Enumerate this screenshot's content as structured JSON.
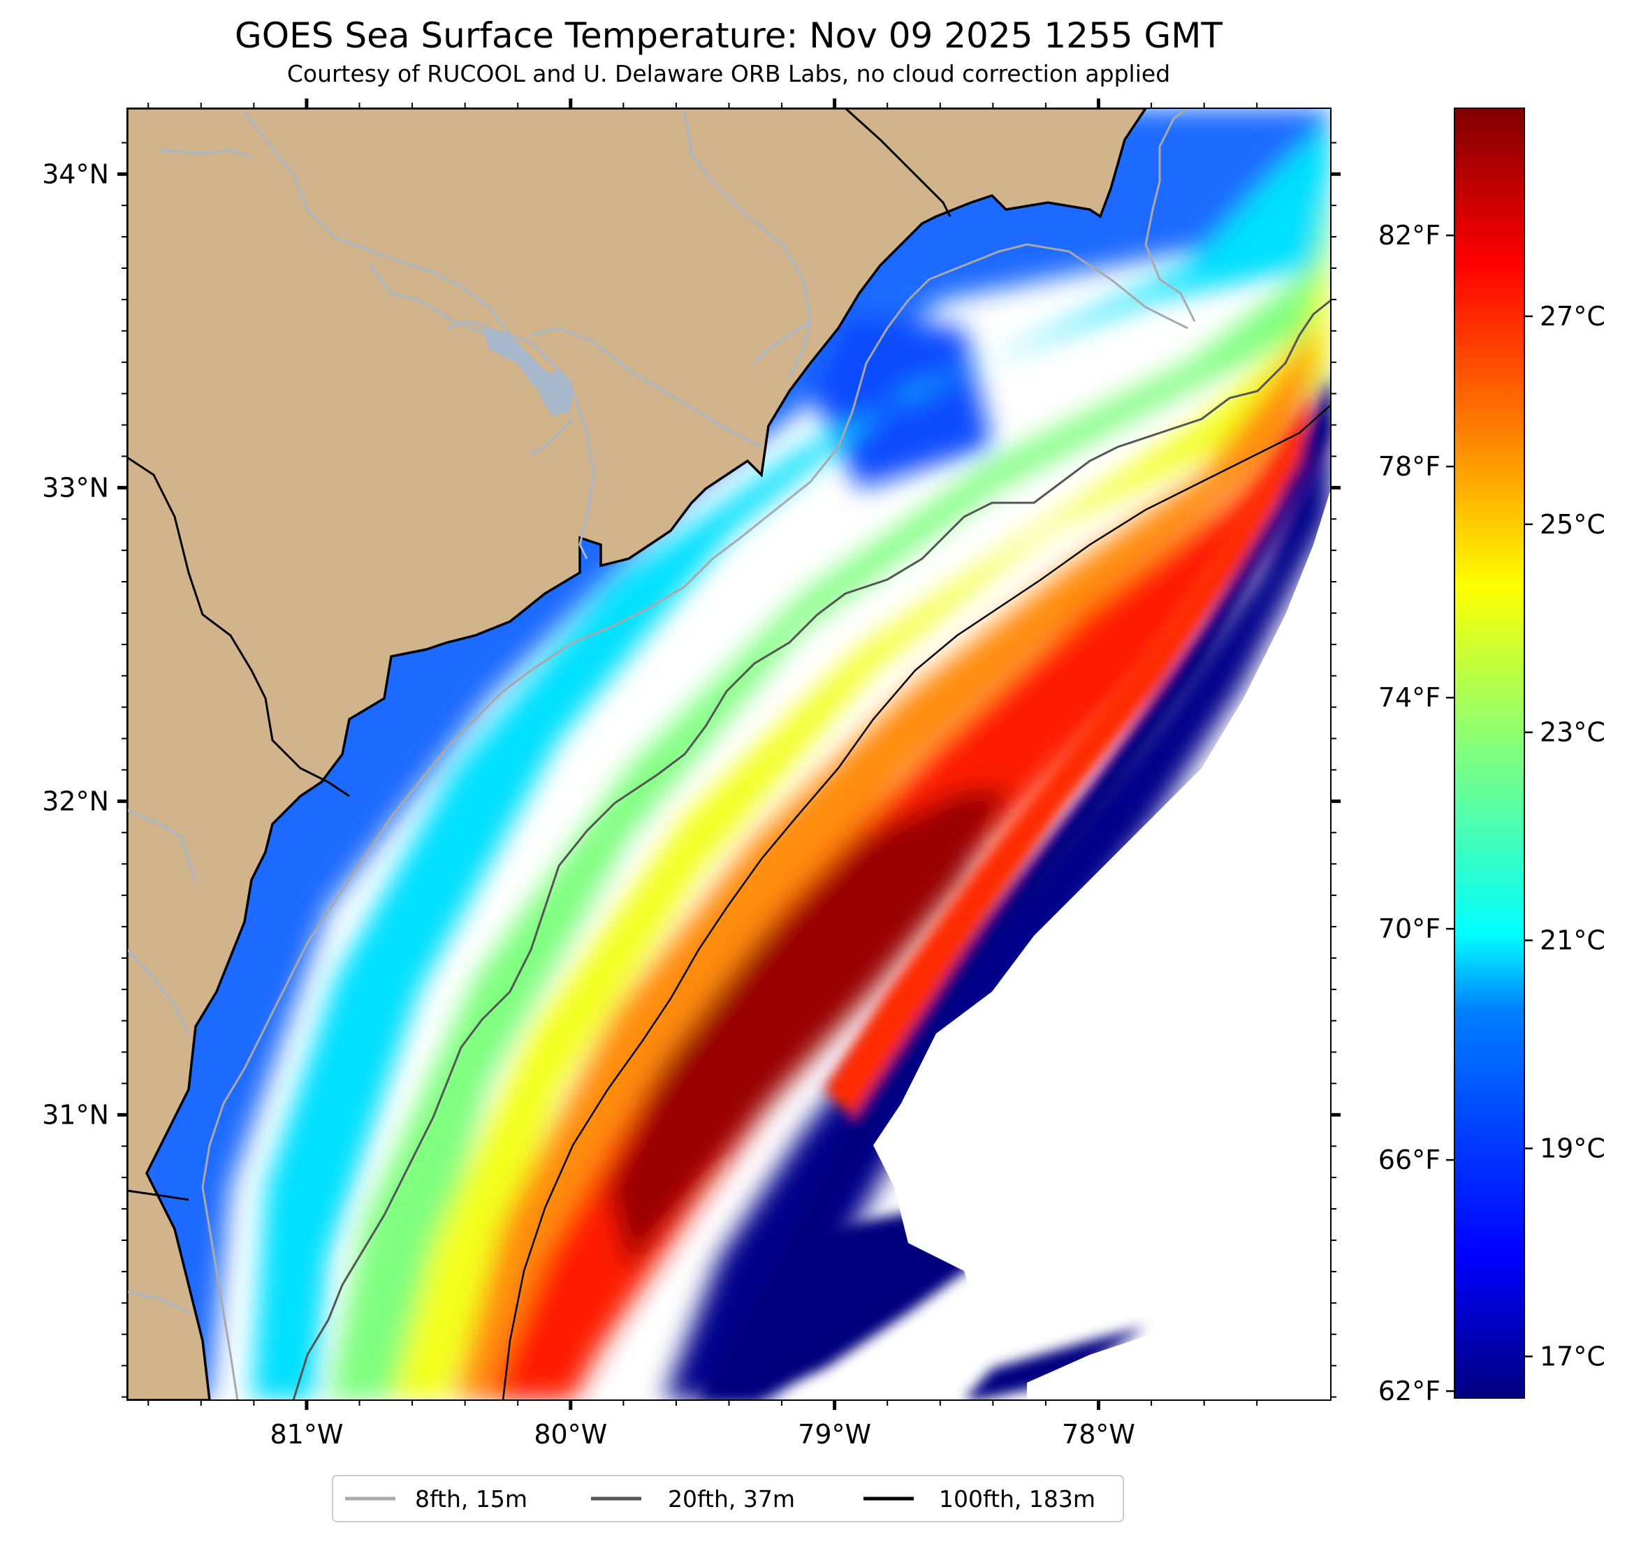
{
  "title": "GOES Sea Surface Temperature: Nov 09 2025 1255 GMT",
  "subtitle": "Courtesy of RUCOOL and U. Delaware ORB Labs, no cloud correction applied",
  "map": {
    "lon_range": [
      -81.68,
      -77.12
    ],
    "lat_range": [
      30.09,
      34.21
    ],
    "lat_ticks": [
      {
        "value": 34,
        "label": "34°N"
      },
      {
        "value": 33,
        "label": "33°N"
      },
      {
        "value": 32,
        "label": "32°N"
      },
      {
        "value": 31,
        "label": "31°N"
      }
    ],
    "lon_ticks": [
      {
        "value": -81,
        "label": "81°W"
      },
      {
        "value": -80,
        "label": "80°W"
      },
      {
        "value": -79,
        "label": "79°W"
      },
      {
        "value": -78,
        "label": "78°W"
      }
    ],
    "colors": {
      "land": "#d2b48c",
      "river": "#a8b8cc",
      "coastline": "#000000",
      "no_data": "#ffffff"
    }
  },
  "colorbar": {
    "min_c": 16.6,
    "max_c": 29.0,
    "celsius_ticks": [
      {
        "value": 17,
        "label": "17°C"
      },
      {
        "value": 19,
        "label": "19°C"
      },
      {
        "value": 21,
        "label": "21°C"
      },
      {
        "value": 23,
        "label": "23°C"
      },
      {
        "value": 25,
        "label": "25°C"
      },
      {
        "value": 27,
        "label": "27°C"
      }
    ],
    "fahrenheit_ticks": [
      {
        "value": 62,
        "label": "62°F"
      },
      {
        "value": 66,
        "label": "66°F"
      },
      {
        "value": 70,
        "label": "70°F"
      },
      {
        "value": 74,
        "label": "74°F"
      },
      {
        "value": 78,
        "label": "78°F"
      },
      {
        "value": 82,
        "label": "82°F"
      }
    ],
    "gradient": [
      "#00007f",
      "#0000ff",
      "#007fff",
      "#00ffff",
      "#7fff7f",
      "#ffff00",
      "#ff7f00",
      "#ff0000",
      "#7f0000"
    ]
  },
  "legend": {
    "items": [
      {
        "label": "8fth, 15m",
        "color": "#a9a9a9"
      },
      {
        "label": "20fth, 37m",
        "color": "#555555"
      },
      {
        "label": "100fth, 183m",
        "color": "#000000"
      }
    ]
  }
}
